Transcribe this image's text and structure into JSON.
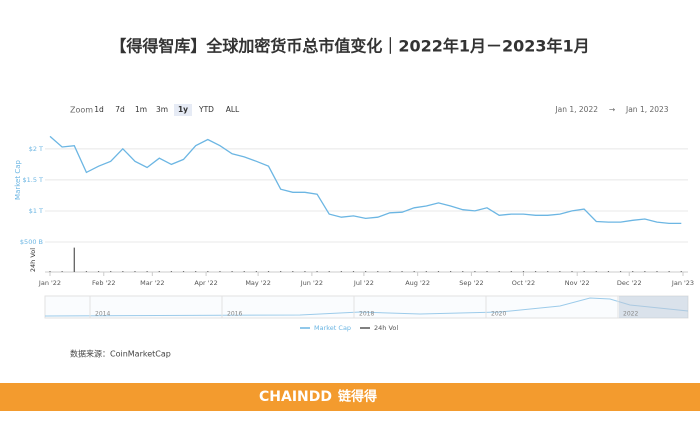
{
  "chart_data": {
    "type": "line",
    "title": "【得得智库】全球加密货币总市值变化｜2022年1月－2023年1月",
    "zoom_label": "Zoom",
    "zoom_buttons": [
      "1d",
      "7d",
      "1m",
      "3m",
      "1y",
      "YTD",
      "ALL"
    ],
    "range_from": "Jan 1, 2022",
    "range_arrow": "→",
    "range_to": "Jan 1, 2023",
    "y_label": "Market Cap",
    "y2_label": "24h Vol",
    "x": [
      0,
      7,
      14,
      21,
      28,
      35,
      42,
      49,
      56,
      63,
      70,
      77,
      84,
      91,
      98,
      105,
      112,
      119,
      126,
      133,
      140,
      147,
      154,
      161,
      168,
      175,
      182,
      189,
      196,
      203,
      210,
      217,
      224,
      231,
      238,
      245,
      252,
      259,
      266,
      273,
      280,
      287,
      294,
      301,
      308,
      315,
      322,
      329,
      336,
      343,
      350,
      357,
      364
    ],
    "xlim": [
      0,
      365
    ],
    "xticks": [
      {
        "value": 0,
        "label": "Jan '22"
      },
      {
        "value": 31,
        "label": "Feb '22"
      },
      {
        "value": 59,
        "label": "Mar '22"
      },
      {
        "value": 90,
        "label": "Apr '22"
      },
      {
        "value": 120,
        "label": "May '22"
      },
      {
        "value": 151,
        "label": "Jun '22"
      },
      {
        "value": 181,
        "label": "Jul '22"
      },
      {
        "value": 212,
        "label": "Aug '22"
      },
      {
        "value": 243,
        "label": "Sep '22"
      },
      {
        "value": 273,
        "label": "Oct '22"
      },
      {
        "value": 304,
        "label": "Nov '22"
      },
      {
        "value": 334,
        "label": "Dec '22"
      },
      {
        "value": 365,
        "label": "Jan '23"
      }
    ],
    "ylim": [
      0.5,
      2.4
    ],
    "yticks": [
      {
        "value": 0.5,
        "label": "$500 B"
      },
      {
        "value": 1,
        "label": "$1 T"
      },
      {
        "value": 1.5,
        "label": "$1.5 T"
      },
      {
        "value": 2,
        "label": "$2 T"
      }
    ],
    "y2lim": [
      0,
      0.32
    ],
    "grid": true,
    "series": [
      {
        "name": "Market Cap",
        "color": "#6cb6e3",
        "values": [
          2.2,
          2.03,
          2.05,
          1.62,
          1.72,
          1.8,
          2.0,
          1.8,
          1.7,
          1.85,
          1.75,
          1.83,
          2.05,
          2.15,
          2.05,
          1.92,
          1.87,
          1.8,
          1.72,
          1.35,
          1.3,
          1.3,
          1.27,
          0.95,
          0.9,
          0.92,
          0.88,
          0.9,
          0.97,
          0.98,
          1.05,
          1.08,
          1.13,
          1.08,
          1.02,
          1.0,
          1.05,
          0.93,
          0.95,
          0.95,
          0.93,
          0.93,
          0.95,
          1.0,
          1.03,
          0.83,
          0.82,
          0.82,
          0.85,
          0.87,
          0.82,
          0.8,
          0.8
        ]
      },
      {
        "name": "24h Vol",
        "color": "#555555",
        "axis": "y2",
        "values": [
          0.01,
          0.01,
          0.3,
          0.01,
          0.01,
          0.01,
          0.01,
          0.01,
          0.01,
          0.01,
          0.01,
          0.01,
          0.01,
          0.01,
          0.01,
          0.01,
          0.01,
          0.01,
          0.01,
          0.01,
          0.01,
          0.01,
          0.01,
          0.01,
          0.01,
          0.01,
          0.01,
          0.01,
          0.01,
          0.01,
          0.01,
          0.01,
          0.01,
          0.01,
          0.01,
          0.01,
          0.01,
          0.01,
          0.01,
          0.01,
          0.01,
          0.01,
          0.01,
          0.01,
          0.01,
          0.01,
          0.01,
          0.01,
          0.01,
          0.01,
          0.01,
          0.01,
          0.01
        ]
      }
    ],
    "navigator_years": [
      "2014",
      "2016",
      "2018",
      "2020",
      "2022"
    ],
    "source": "数据来源：CoinMarketCap",
    "footer_brand": "CHAINDD",
    "footer_logo": "链得得"
  }
}
